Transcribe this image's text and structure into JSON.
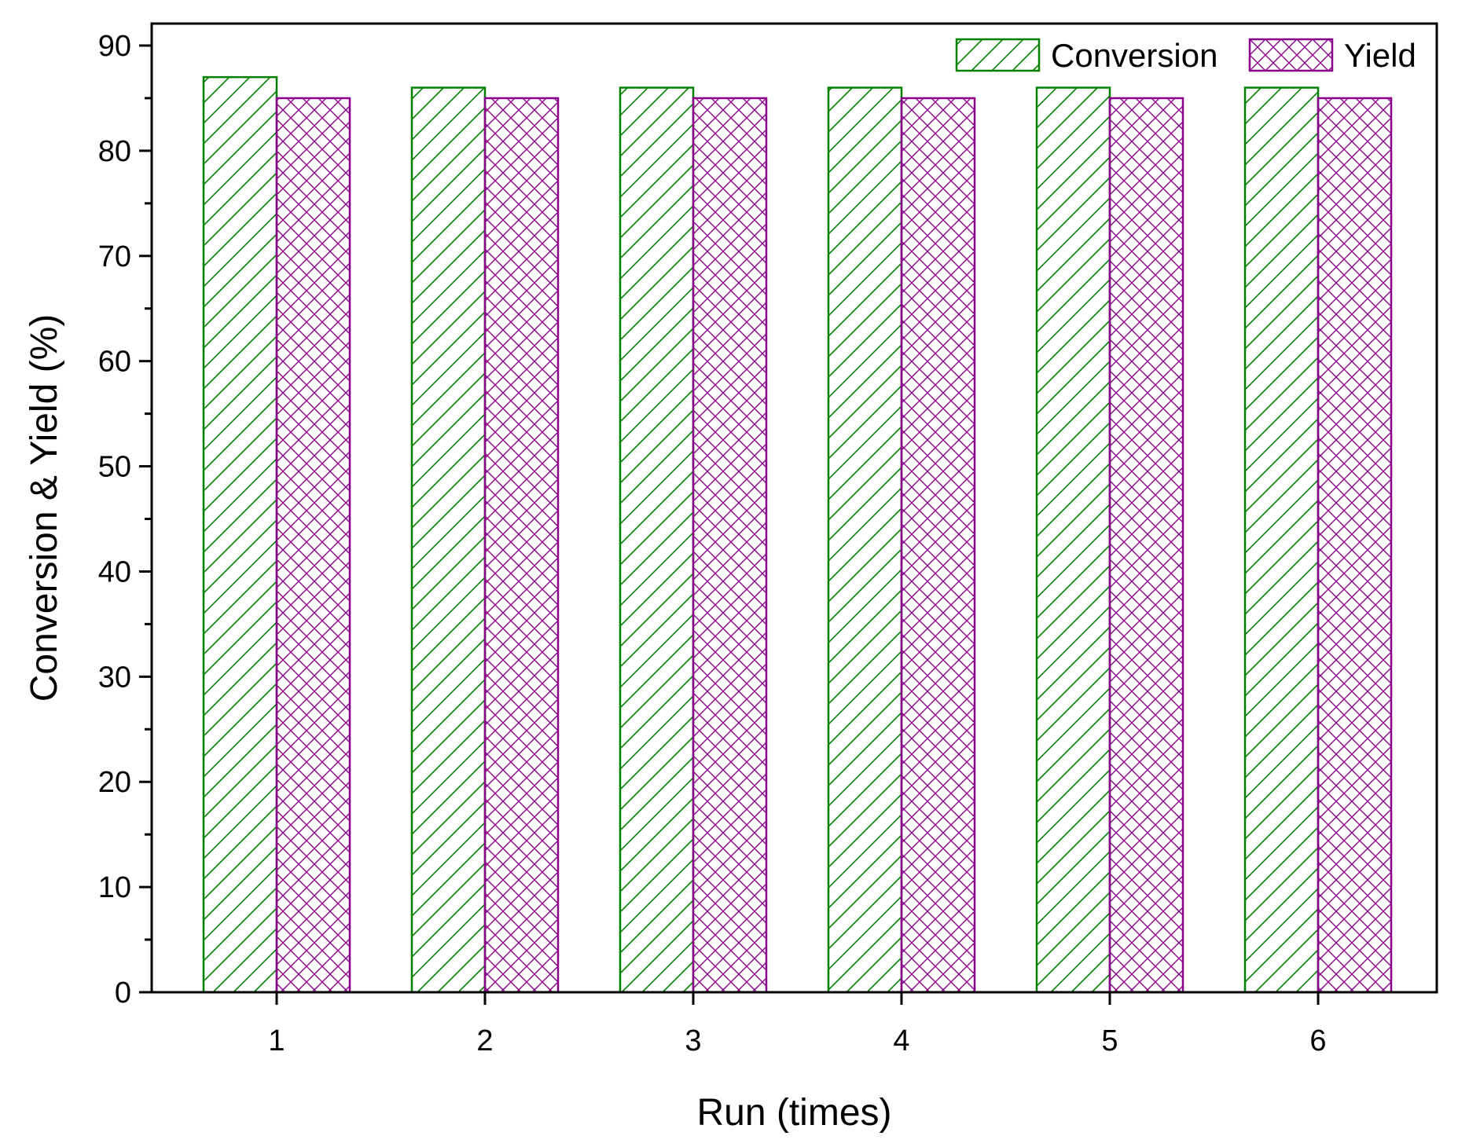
{
  "chart_data": {
    "type": "bar",
    "title": "",
    "xlabel": "Run (times)",
    "ylabel": "Conversion & Yield (%)",
    "categories": [
      "1",
      "2",
      "3",
      "4",
      "5",
      "6"
    ],
    "ylim": [
      0,
      90
    ],
    "yticks": [
      "0",
      "10",
      "20",
      "30",
      "40",
      "50",
      "60",
      "70",
      "80",
      "90"
    ],
    "grid": false,
    "legend_position": "top-right",
    "series": [
      {
        "name": "Conversion",
        "values": [
          87,
          86,
          86,
          86,
          86,
          86
        ],
        "color": "#008000",
        "pattern": "diagonal-hatch"
      },
      {
        "name": "Yield",
        "values": [
          85,
          85,
          85,
          85,
          85,
          85
        ],
        "color": "#8B008B",
        "pattern": "cross-hatch"
      }
    ]
  }
}
